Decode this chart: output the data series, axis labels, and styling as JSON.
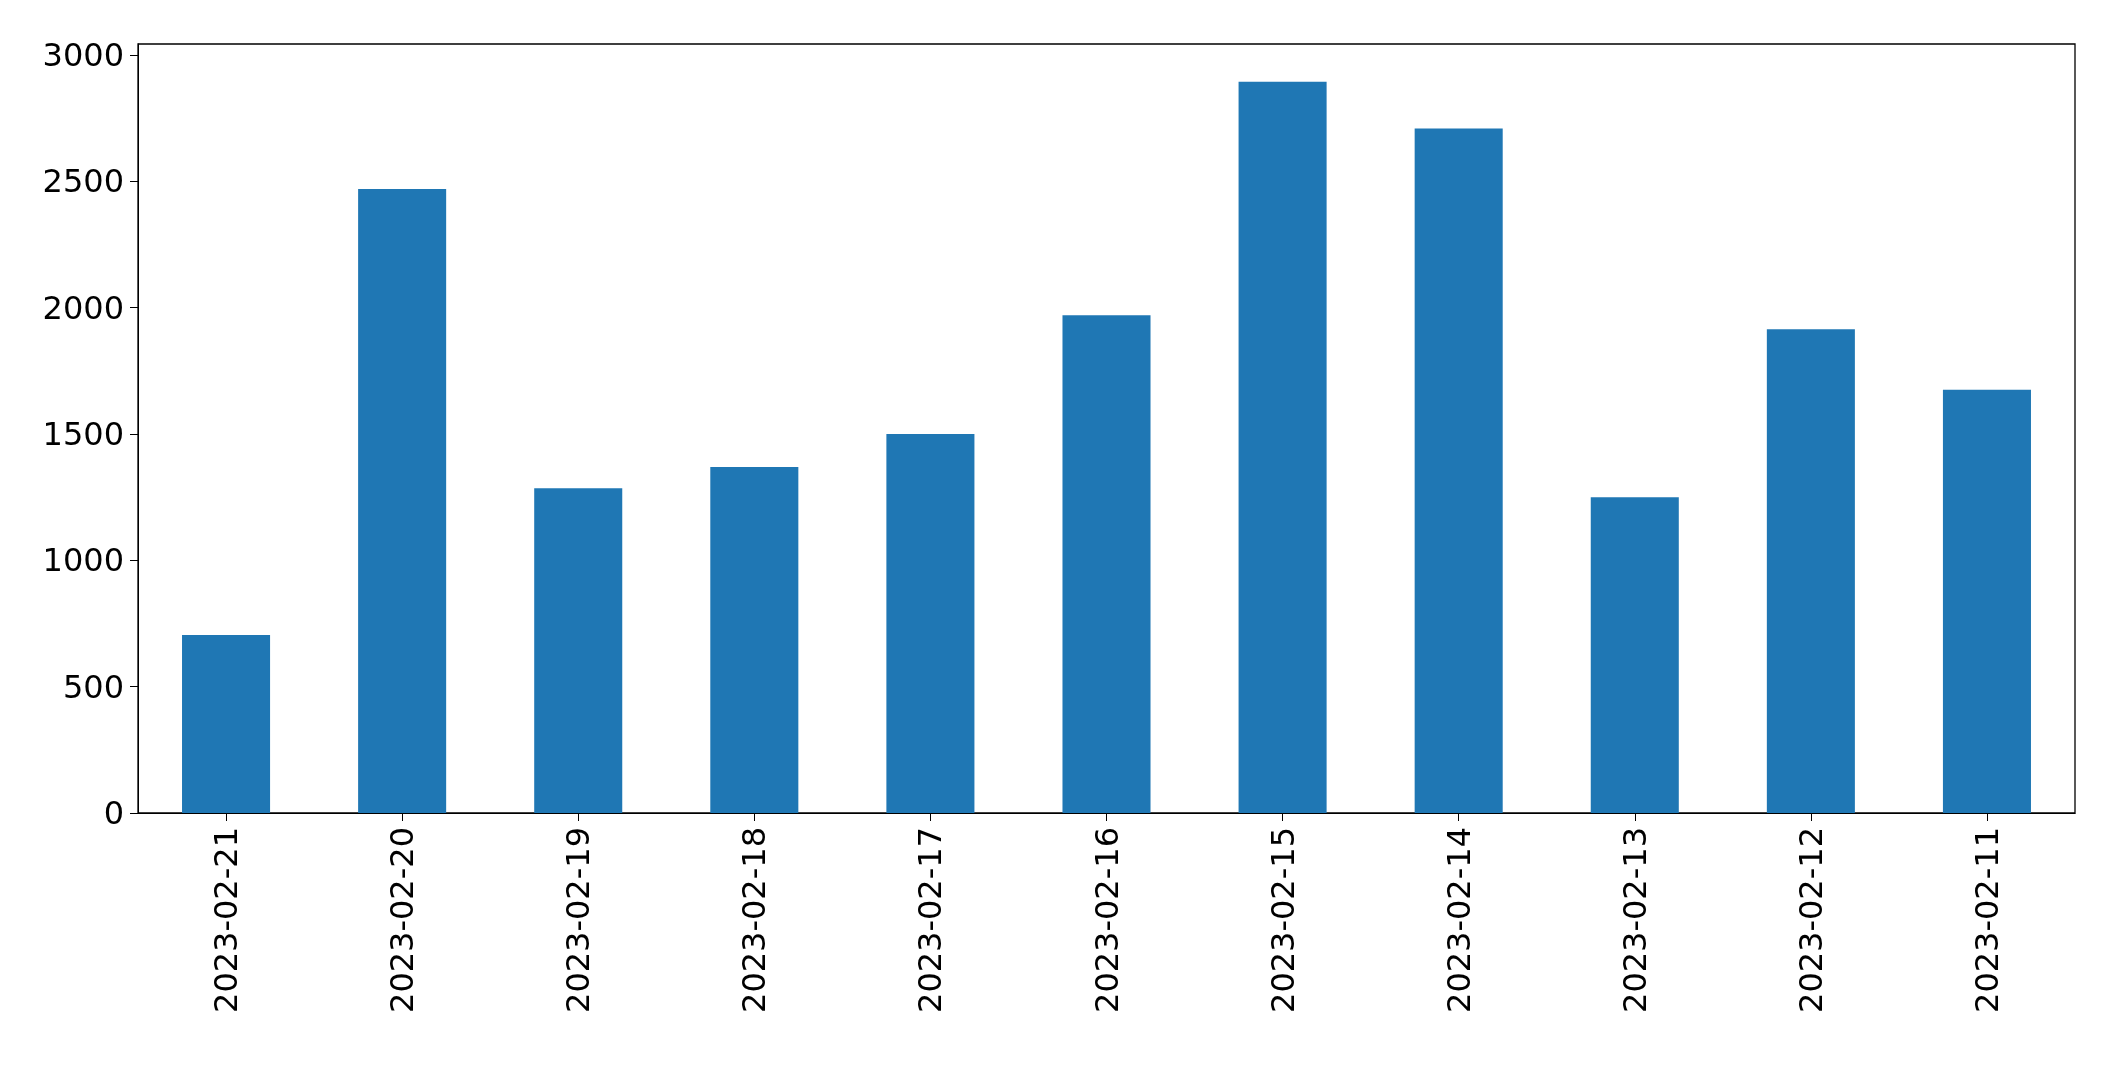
{
  "chart_data": {
    "type": "bar",
    "categories": [
      "2023-02-21",
      "2023-02-20",
      "2023-02-19",
      "2023-02-18",
      "2023-02-17",
      "2023-02-16",
      "2023-02-15",
      "2023-02-14",
      "2023-02-13",
      "2023-02-12",
      "2023-02-11"
    ],
    "values": [
      705,
      2470,
      1285,
      1370,
      1500,
      1970,
      2895,
      2710,
      1250,
      1915,
      1675
    ],
    "color": "#1f77b4",
    "ylim": [
      0,
      3044
    ],
    "yticks": [
      0,
      500,
      1000,
      1500,
      2000,
      2500,
      3000
    ],
    "grid": false
  }
}
